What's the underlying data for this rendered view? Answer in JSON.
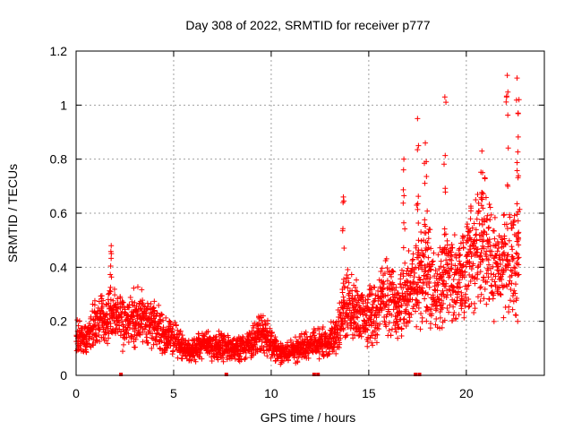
{
  "chart_data": {
    "type": "scatter",
    "title": "Day 308 of 2022, SRMTID for receiver p777",
    "xlabel": "GPS time / hours",
    "ylabel": "SRMTID / TECUs",
    "xlim": [
      0,
      24
    ],
    "ylim": [
      0,
      1.2
    ],
    "xticks": [
      "0",
      "5",
      "10",
      "15",
      "20"
    ],
    "yticks": [
      "0",
      "0.2",
      "0.4",
      "0.6",
      "0.8",
      "1",
      "1.2"
    ],
    "grid": true,
    "marker": "+",
    "series_color": "#ff0000",
    "baseline_markers_hours": [
      2.3,
      7.7,
      12.2,
      12.4,
      17.4,
      17.6
    ],
    "profile": [
      {
        "x": 0.0,
        "y": 0.14
      },
      {
        "x": 0.5,
        "y": 0.13
      },
      {
        "x": 1.0,
        "y": 0.2
      },
      {
        "x": 1.5,
        "y": 0.2
      },
      {
        "x": 2.0,
        "y": 0.24
      },
      {
        "x": 2.5,
        "y": 0.17
      },
      {
        "x": 3.0,
        "y": 0.22
      },
      {
        "x": 3.5,
        "y": 0.21
      },
      {
        "x": 4.0,
        "y": 0.19
      },
      {
        "x": 4.5,
        "y": 0.15
      },
      {
        "x": 5.0,
        "y": 0.14
      },
      {
        "x": 5.5,
        "y": 0.1
      },
      {
        "x": 6.0,
        "y": 0.09
      },
      {
        "x": 6.5,
        "y": 0.12
      },
      {
        "x": 7.0,
        "y": 0.1
      },
      {
        "x": 7.5,
        "y": 0.11
      },
      {
        "x": 8.0,
        "y": 0.09
      },
      {
        "x": 8.5,
        "y": 0.11
      },
      {
        "x": 9.0,
        "y": 0.12
      },
      {
        "x": 9.5,
        "y": 0.16
      },
      {
        "x": 10.0,
        "y": 0.12
      },
      {
        "x": 10.5,
        "y": 0.08
      },
      {
        "x": 11.0,
        "y": 0.09
      },
      {
        "x": 11.5,
        "y": 0.1
      },
      {
        "x": 12.0,
        "y": 0.11
      },
      {
        "x": 12.5,
        "y": 0.12
      },
      {
        "x": 13.0,
        "y": 0.12
      },
      {
        "x": 13.5,
        "y": 0.18
      },
      {
        "x": 14.0,
        "y": 0.28
      },
      {
        "x": 14.5,
        "y": 0.22
      },
      {
        "x": 15.0,
        "y": 0.22
      },
      {
        "x": 15.5,
        "y": 0.25
      },
      {
        "x": 16.0,
        "y": 0.3
      },
      {
        "x": 16.5,
        "y": 0.24
      },
      {
        "x": 17.0,
        "y": 0.3
      },
      {
        "x": 17.5,
        "y": 0.36
      },
      {
        "x": 18.0,
        "y": 0.4
      },
      {
        "x": 18.5,
        "y": 0.3
      },
      {
        "x": 19.0,
        "y": 0.38
      },
      {
        "x": 19.5,
        "y": 0.35
      },
      {
        "x": 20.0,
        "y": 0.38
      },
      {
        "x": 20.5,
        "y": 0.48
      },
      {
        "x": 21.0,
        "y": 0.5
      },
      {
        "x": 21.5,
        "y": 0.4
      },
      {
        "x": 22.0,
        "y": 0.42
      },
      {
        "x": 22.5,
        "y": 0.42
      },
      {
        "x": 22.7,
        "y": 0.4
      }
    ],
    "peaks": [
      {
        "x": 1.8,
        "y": 0.48
      },
      {
        "x": 13.7,
        "y": 0.66
      },
      {
        "x": 16.8,
        "y": 0.8
      },
      {
        "x": 17.5,
        "y": 0.95
      },
      {
        "x": 17.9,
        "y": 0.86
      },
      {
        "x": 18.9,
        "y": 1.03
      },
      {
        "x": 20.8,
        "y": 0.83
      },
      {
        "x": 22.1,
        "y": 1.11
      },
      {
        "x": 22.6,
        "y": 1.1
      },
      {
        "x": 22.7,
        "y": 1.02
      }
    ]
  }
}
